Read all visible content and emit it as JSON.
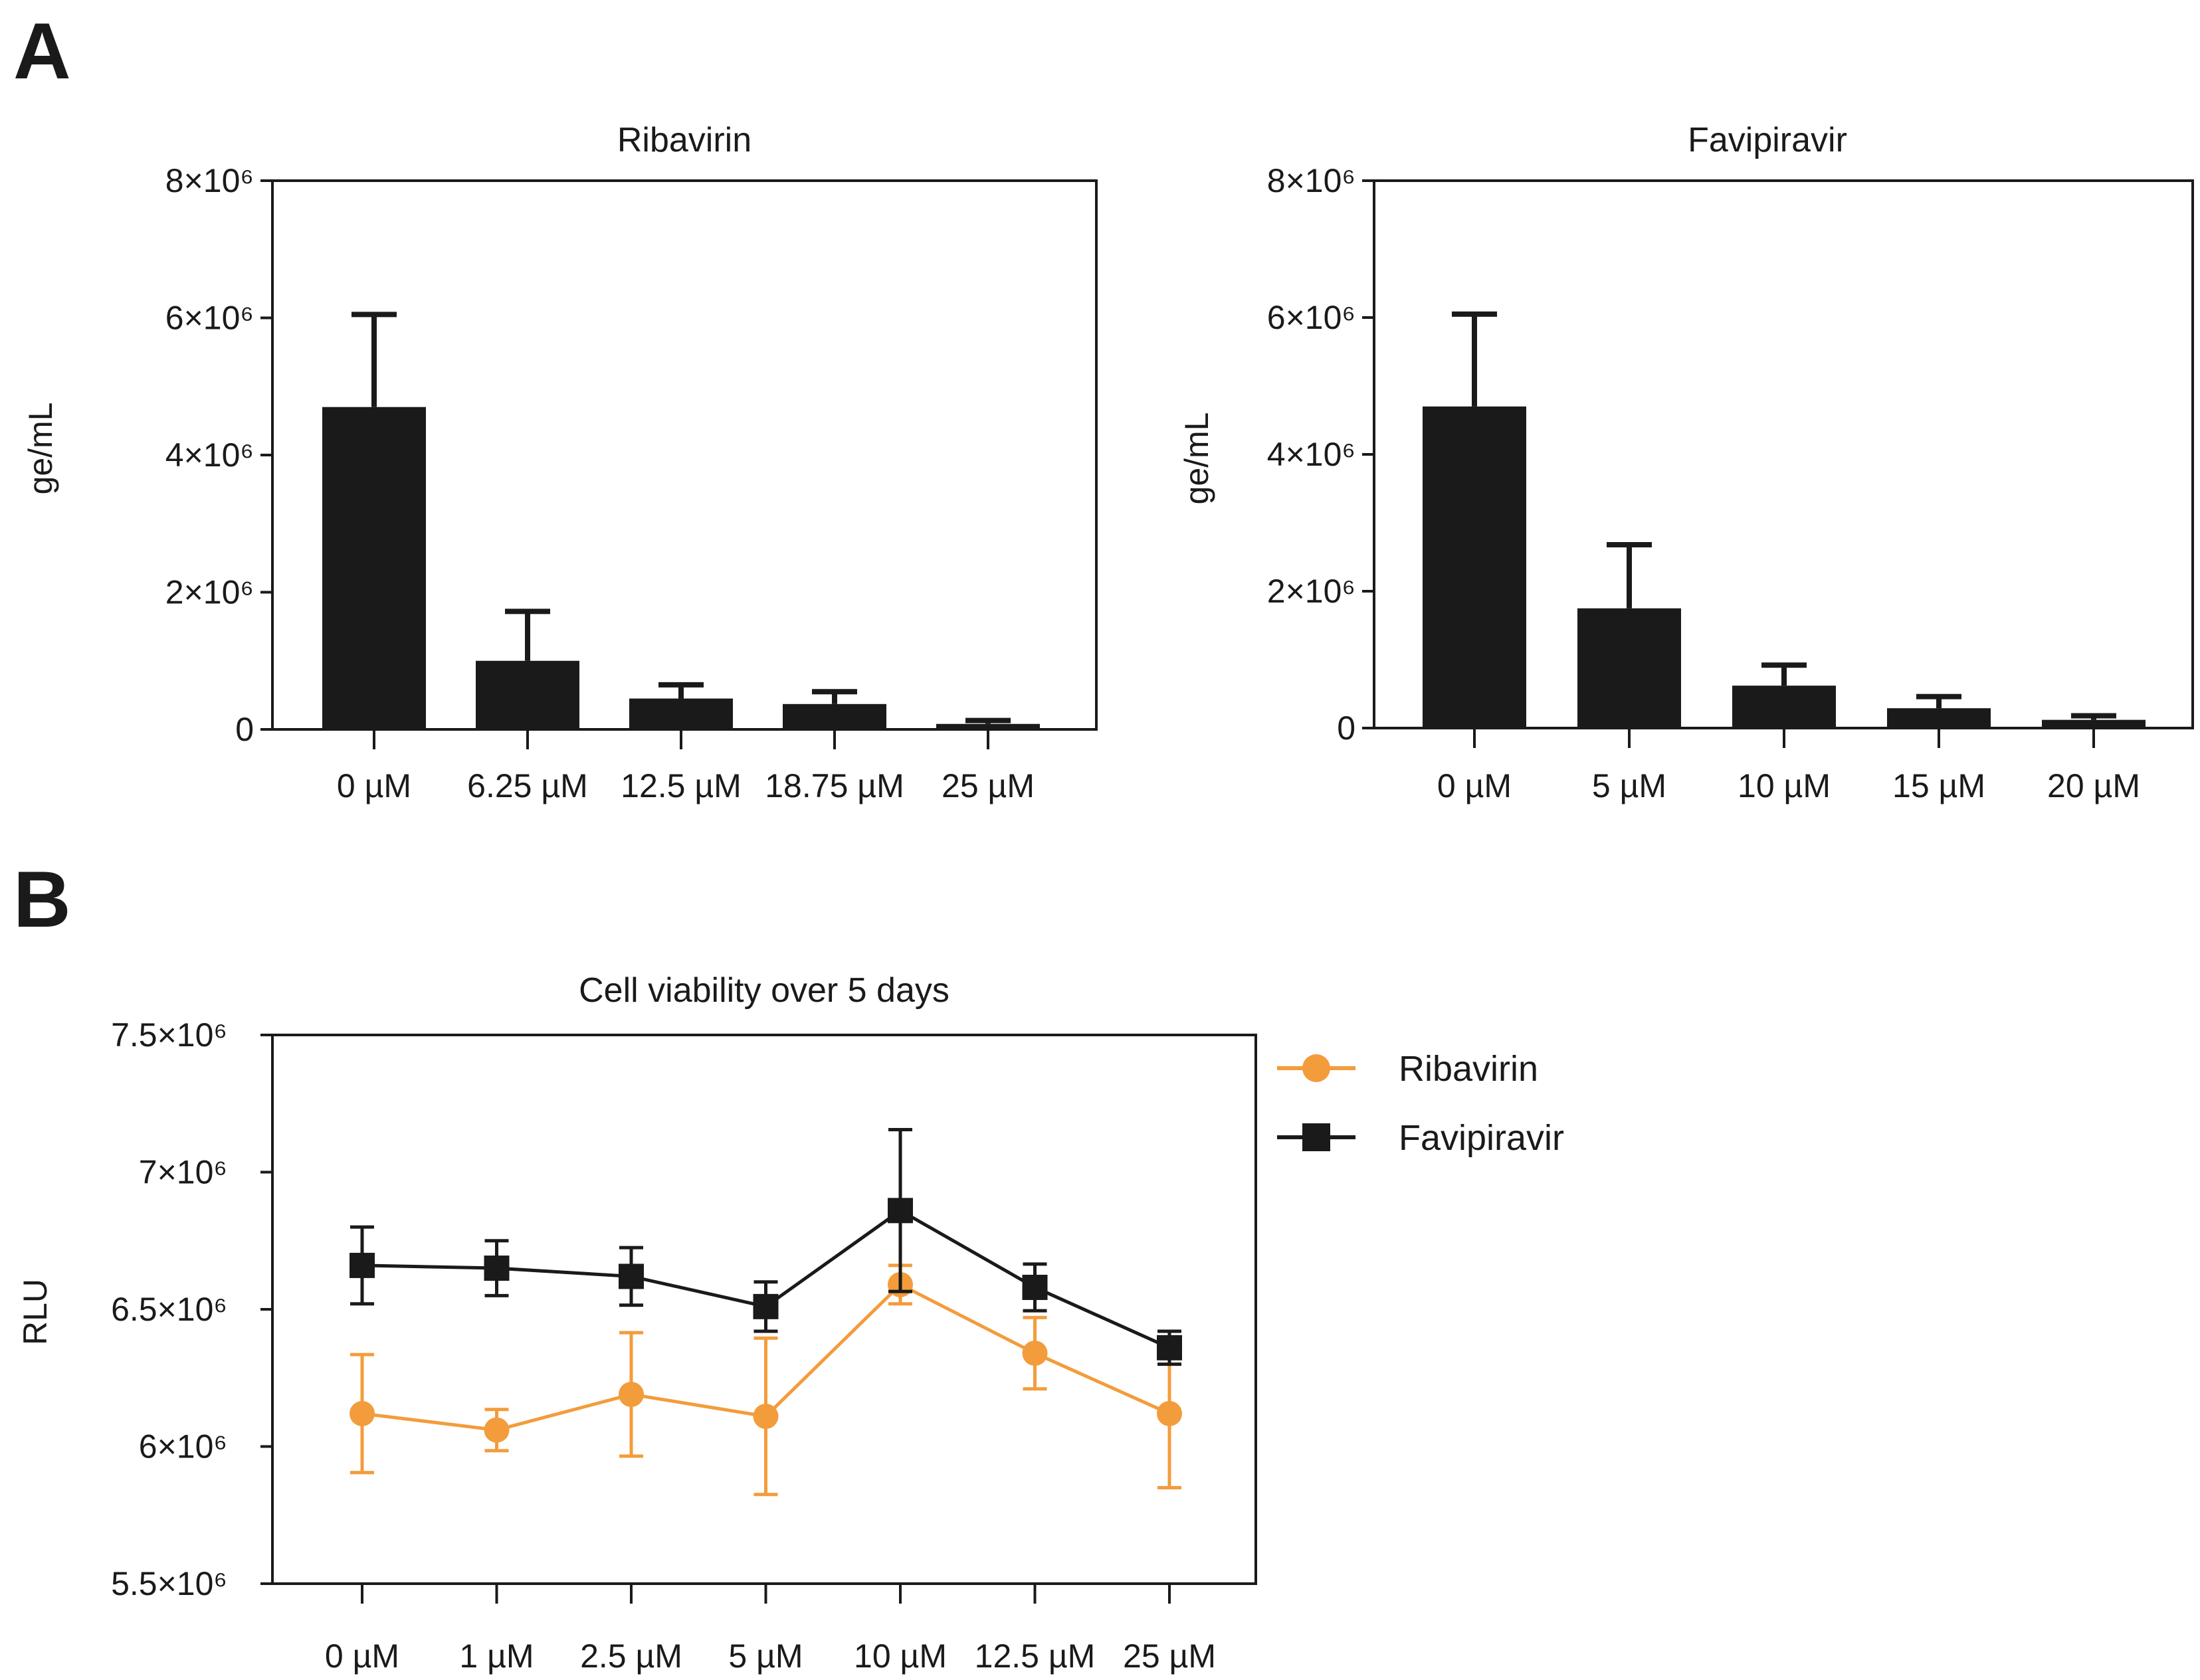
{
  "panels": {
    "a": "A",
    "b": "B"
  },
  "chart_data": [
    {
      "type": "bar",
      "title": "Ribavirin",
      "ylabel": "ge/mL",
      "xlabel": "",
      "categories": [
        "0 µM",
        "6.25 µM",
        "12.5 µM",
        "18.75 µM",
        "25 µM"
      ],
      "values": [
        4700000,
        1000000,
        450000,
        370000,
        80000
      ],
      "errors": [
        1350000,
        720000,
        200000,
        180000,
        50000
      ],
      "ylim": [
        0,
        8000000
      ],
      "yticks": [
        0,
        2000000,
        4000000,
        6000000,
        8000000
      ],
      "ytick_labels": [
        "0",
        "2×10⁶",
        "4×10⁶",
        "6×10⁶",
        "8×10⁶"
      ],
      "bar_color": "#1a1a1a"
    },
    {
      "type": "bar",
      "title": "Favipiravir",
      "ylabel": "ge/mL",
      "xlabel": "",
      "categories": [
        "0 µM",
        "5 µM",
        "10 µM",
        "15 µM",
        "20 µM"
      ],
      "values": [
        4700000,
        1750000,
        620000,
        290000,
        120000
      ],
      "errors": [
        1350000,
        930000,
        300000,
        170000,
        60000
      ],
      "ylim": [
        0,
        8000000
      ],
      "yticks": [
        0,
        2000000,
        4000000,
        6000000,
        8000000
      ],
      "ytick_labels": [
        "0",
        "2×10⁶",
        "4×10⁶",
        "6×10⁶",
        "8×10⁶"
      ],
      "bar_color": "#1a1a1a"
    },
    {
      "type": "line",
      "title": "Cell viability over 5 days",
      "ylabel": "RLU",
      "xlabel": "",
      "categories": [
        "0 µM",
        "1 µM",
        "2.5 µM",
        "5 µM",
        "10 µM",
        "12.5 µM",
        "25 µM"
      ],
      "ylim": [
        5500000,
        7500000
      ],
      "yticks": [
        5500000,
        6000000,
        6500000,
        7000000,
        7500000
      ],
      "ytick_labels": [
        "5.5×10⁶",
        "6×10⁶",
        "6.5×10⁶",
        "7×10⁶",
        "7.5×10⁶"
      ],
      "legend_position": "right",
      "series": [
        {
          "name": "Ribavirin",
          "marker": "circle",
          "color": "#f39c3c",
          "values": [
            6120000,
            6060000,
            6190000,
            6110000,
            6590000,
            6340000,
            6120000
          ],
          "errors": [
            215000,
            75000,
            225000,
            285000,
            70000,
            130000,
            270000
          ]
        },
        {
          "name": "Favipiravir",
          "marker": "square",
          "color": "#1a1a1a",
          "values": [
            6660000,
            6650000,
            6620000,
            6510000,
            6860000,
            6580000,
            6360000
          ],
          "errors": [
            140000,
            100000,
            105000,
            90000,
            295000,
            85000,
            60000
          ]
        }
      ]
    }
  ]
}
